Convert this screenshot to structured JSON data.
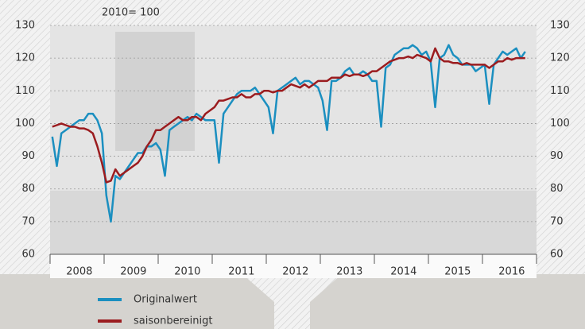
{
  "chart_data": {
    "type": "line",
    "subtitle": "2010= 100",
    "categories": [
      null,
      null,
      null,
      null,
      null,
      null,
      "2008",
      null,
      null,
      null,
      null,
      null,
      null,
      null,
      null,
      null,
      null,
      null,
      "2009",
      null,
      null,
      null,
      null,
      null,
      null,
      null,
      null,
      null,
      null,
      null,
      "2010",
      null,
      null,
      null,
      null,
      null,
      null,
      null,
      null,
      null,
      null,
      null,
      "2011",
      null,
      null,
      null,
      null,
      null,
      null,
      null,
      null,
      null,
      null,
      null,
      "2012",
      null,
      null,
      null,
      null,
      null,
      null,
      null,
      null,
      null,
      null,
      null,
      "2013",
      null,
      null,
      null,
      null,
      null,
      null,
      null,
      null,
      null,
      null,
      null,
      "2014",
      null,
      null,
      null,
      null,
      null,
      null,
      null,
      null,
      null,
      null,
      null,
      "2015",
      null,
      null,
      null,
      null,
      null,
      null,
      null,
      null,
      null,
      null,
      null,
      "2016",
      null,
      null,
      null
    ],
    "series": [
      {
        "name": "Originalwert",
        "color": "#1b8fc0",
        "values": [
          96,
          87,
          97,
          98,
          99,
          100,
          101,
          101,
          103,
          103,
          101,
          97,
          78,
          70,
          84,
          83,
          85,
          87,
          89,
          91,
          91,
          93,
          93,
          94,
          92,
          84,
          98,
          99,
          100,
          101,
          102,
          101,
          103,
          102,
          101,
          101,
          101,
          88,
          103,
          105,
          107,
          109,
          110,
          110,
          110,
          111,
          109,
          107,
          105,
          97,
          110,
          111,
          112,
          113,
          114,
          112,
          113,
          113,
          112,
          111,
          107,
          98,
          113,
          113,
          114,
          116,
          117,
          115,
          115,
          116,
          115,
          113,
          113,
          99,
          117,
          118,
          121,
          122,
          123,
          123,
          124,
          123,
          121,
          122,
          119,
          105,
          120,
          121,
          124,
          121,
          120,
          118,
          118,
          118,
          116,
          117,
          118,
          106,
          118,
          120,
          122,
          121,
          122,
          123,
          120,
          122
        ]
      },
      {
        "name": "saisonbereinigt",
        "color": "#9b1c1f",
        "values": [
          99,
          99.5,
          100,
          99.5,
          99,
          99,
          98.5,
          98.5,
          98,
          97,
          93,
          88,
          82,
          82.5,
          86,
          84,
          85,
          86,
          87,
          88,
          90,
          93,
          95,
          98,
          98,
          99,
          100,
          101,
          102,
          101,
          101,
          102,
          102,
          101,
          103,
          104,
          105,
          107,
          107,
          107.5,
          108,
          108,
          109,
          108,
          108,
          109,
          109,
          110,
          110,
          109.5,
          110,
          110,
          111,
          112,
          111.5,
          111,
          112,
          111,
          112,
          113,
          113,
          113,
          114,
          114,
          114,
          115,
          114.5,
          115,
          115,
          114.5,
          115,
          116,
          116,
          117,
          118,
          119,
          119.5,
          120,
          120,
          120.5,
          120,
          121,
          120.5,
          120,
          119,
          123,
          120,
          119,
          119,
          118.5,
          118.5,
          118,
          118.5,
          118,
          118,
          118,
          118,
          117,
          118,
          119,
          119,
          120,
          119.5,
          120,
          120,
          120
        ]
      }
    ],
    "ylim": [
      60,
      130
    ],
    "yticks": [
      60,
      70,
      80,
      90,
      100,
      110,
      120,
      130
    ],
    "grid": true
  }
}
